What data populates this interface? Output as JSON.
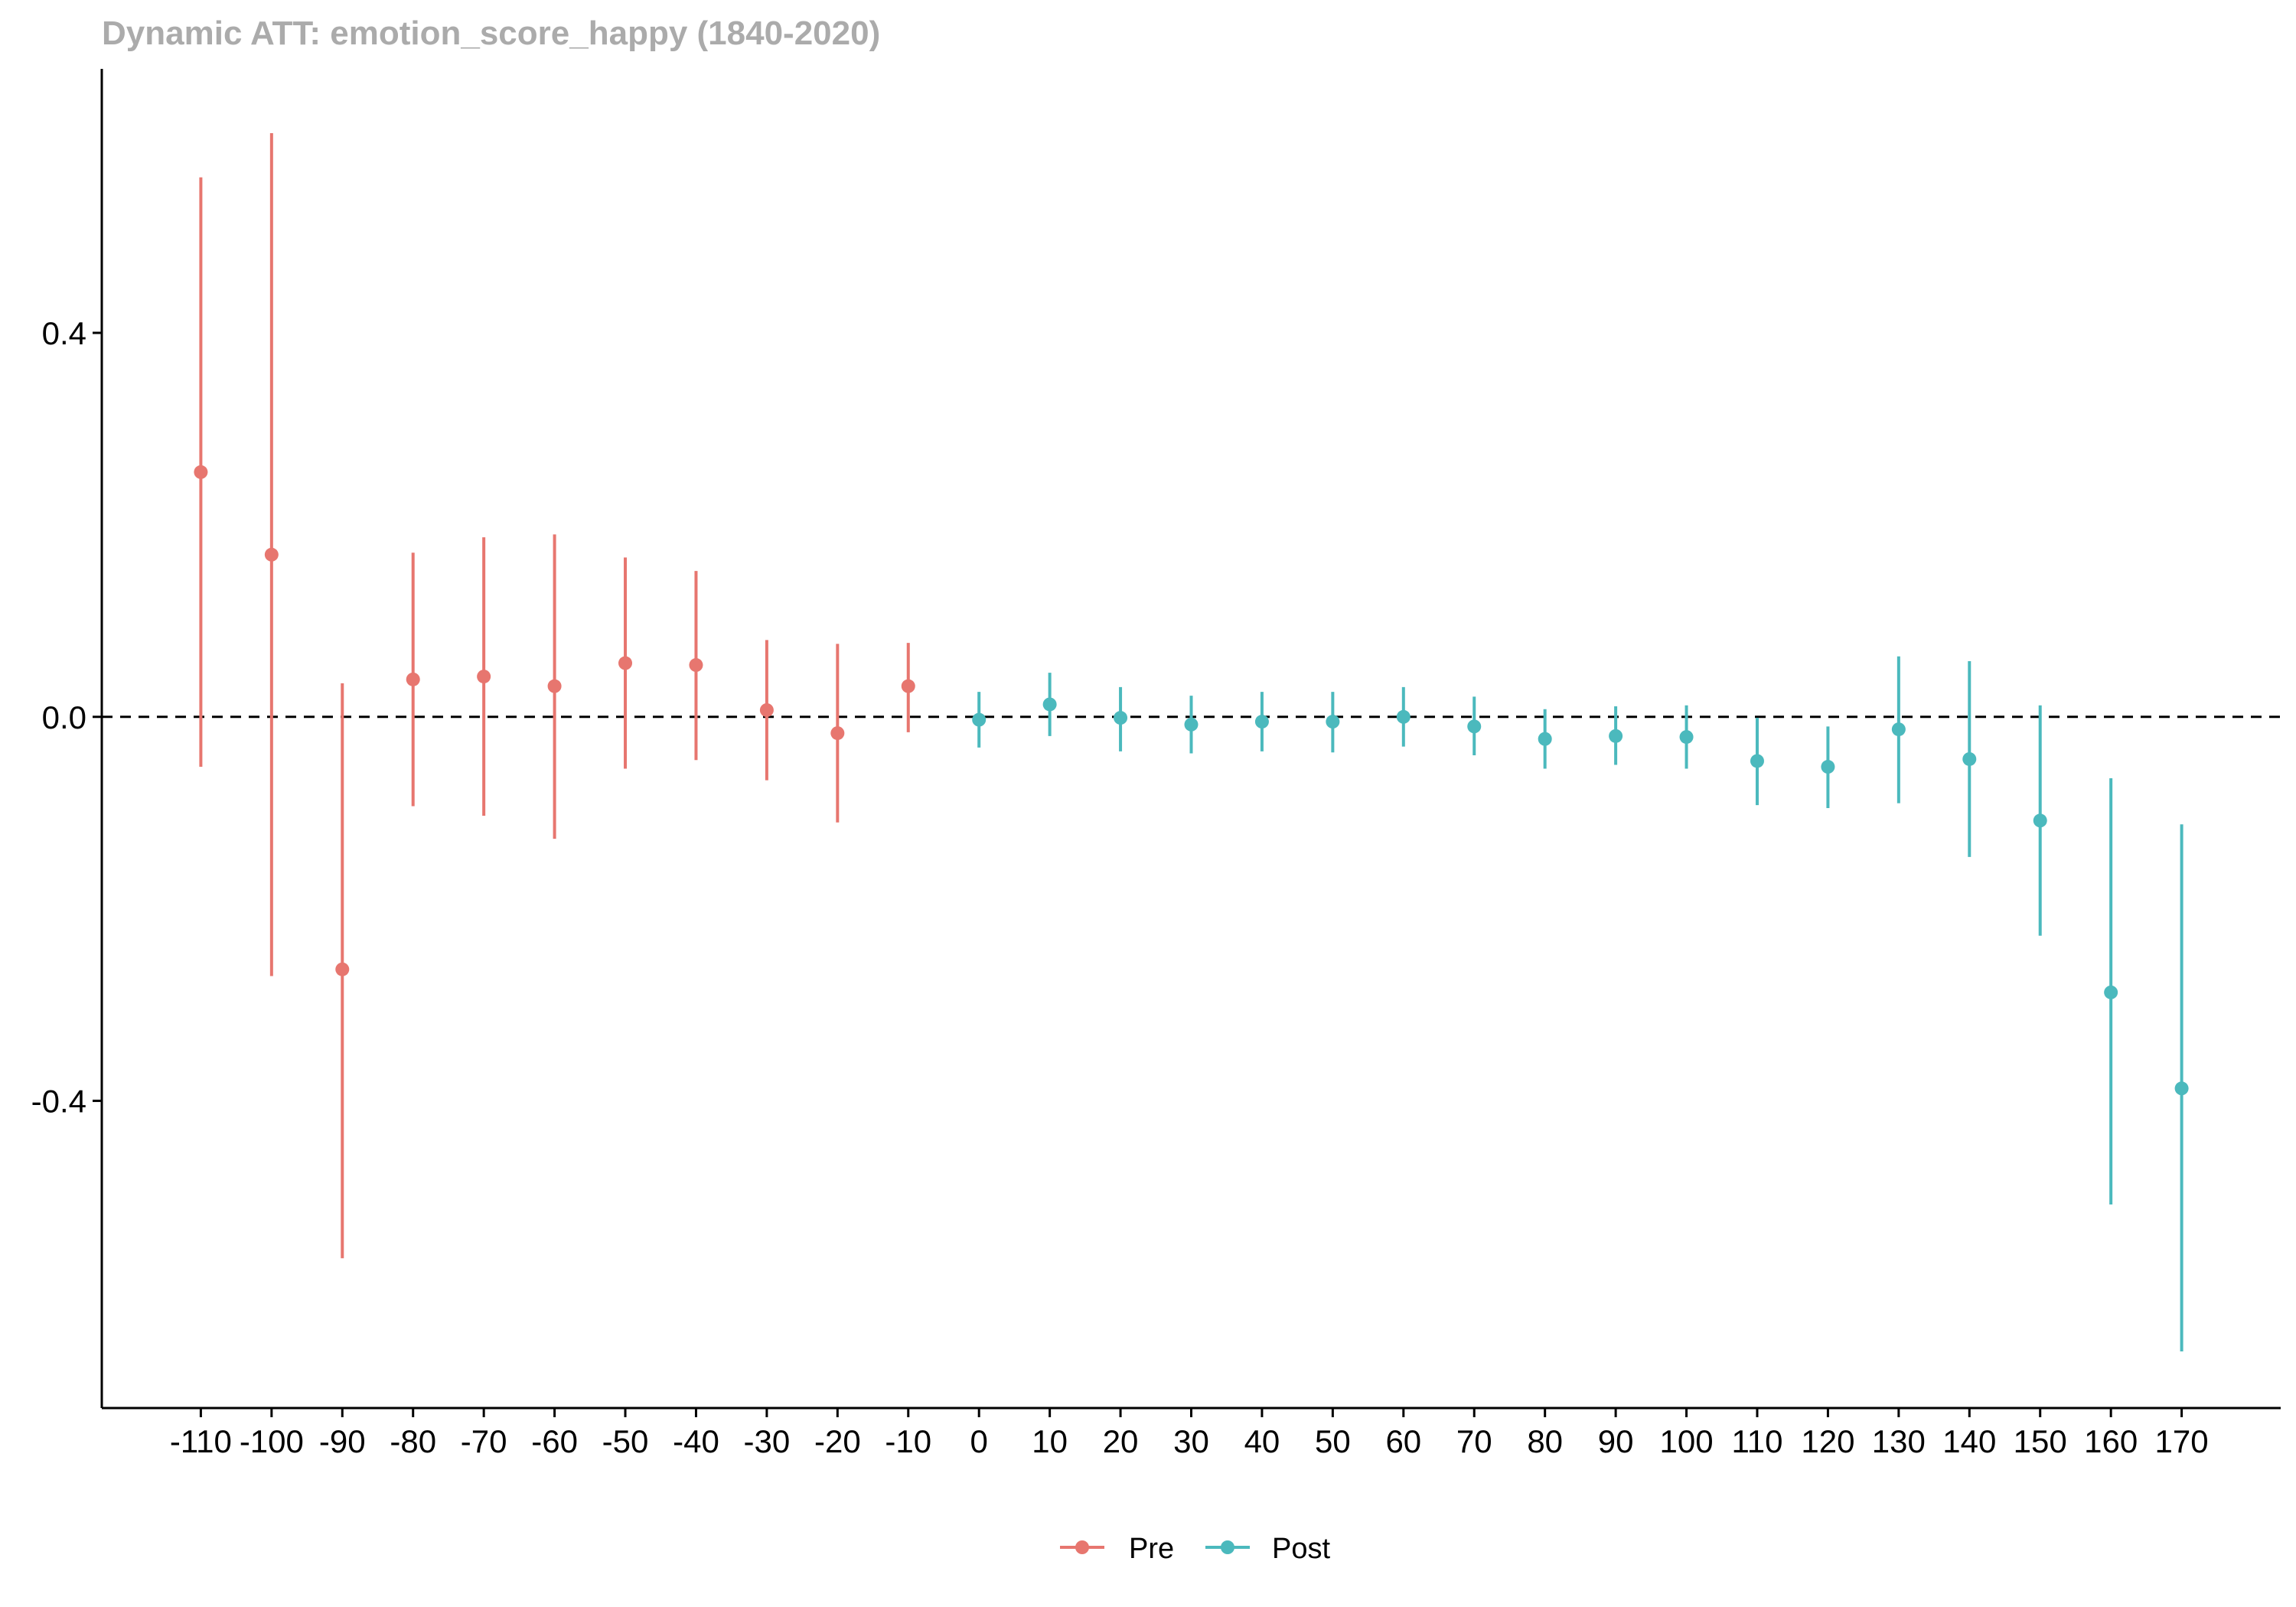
{
  "chart_data": {
    "type": "scatter",
    "title": "Dynamic ATT: emotion_score_happy (1840-2020)",
    "xlabel": "",
    "ylabel": "",
    "x_ticks": [
      -110,
      -100,
      -90,
      -80,
      -70,
      -60,
      -50,
      -40,
      -30,
      -20,
      -10,
      0,
      10,
      20,
      30,
      40,
      50,
      60,
      70,
      80,
      90,
      100,
      110,
      120,
      130,
      140,
      150,
      160,
      170
    ],
    "x_tick_labels": [
      "-110",
      "-100",
      "-90",
      "-80",
      "-70",
      "-60",
      "-50",
      "-40",
      "-30",
      "-20",
      "-10",
      "0",
      "10",
      "20",
      "30",
      "40",
      "50",
      "60",
      "70",
      "80",
      "90",
      "100",
      "110",
      "120",
      "130",
      "140",
      "150",
      "160",
      "170"
    ],
    "y_ticks": [
      -0.4,
      0.0,
      0.4
    ],
    "y_tick_labels": [
      "-0.4",
      "0.0",
      "0.4"
    ],
    "xlim": [
      -124,
      184
    ],
    "ylim": [
      -0.72,
      0.675
    ],
    "reference_line_y": 0,
    "grid": false,
    "legend_position": "bottom",
    "series": [
      {
        "name": "Pre",
        "color": "#E7766F",
        "points": [
          {
            "x": -110,
            "y": 0.255,
            "lo": -0.052,
            "hi": 0.562
          },
          {
            "x": -100,
            "y": 0.169,
            "lo": -0.27,
            "hi": 0.608
          },
          {
            "x": -90,
            "y": -0.263,
            "lo": -0.564,
            "hi": 0.035
          },
          {
            "x": -80,
            "y": 0.039,
            "lo": -0.093,
            "hi": 0.171
          },
          {
            "x": -70,
            "y": 0.042,
            "lo": -0.103,
            "hi": 0.187
          },
          {
            "x": -60,
            "y": 0.032,
            "lo": -0.127,
            "hi": 0.19
          },
          {
            "x": -50,
            "y": 0.056,
            "lo": -0.054,
            "hi": 0.166
          },
          {
            "x": -40,
            "y": 0.054,
            "lo": -0.045,
            "hi": 0.152
          },
          {
            "x": -30,
            "y": 0.007,
            "lo": -0.066,
            "hi": 0.08
          },
          {
            "x": -20,
            "y": -0.017,
            "lo": -0.11,
            "hi": 0.076
          },
          {
            "x": -10,
            "y": 0.032,
            "lo": -0.016,
            "hi": 0.077
          }
        ]
      },
      {
        "name": "Post",
        "color": "#4BB9BD",
        "points": [
          {
            "x": 0,
            "y": -0.003,
            "lo": -0.032,
            "hi": 0.026
          },
          {
            "x": 10,
            "y": 0.013,
            "lo": -0.02,
            "hi": 0.046
          },
          {
            "x": 20,
            "y": -0.001,
            "lo": -0.036,
            "hi": 0.031
          },
          {
            "x": 30,
            "y": -0.008,
            "lo": -0.038,
            "hi": 0.022
          },
          {
            "x": 40,
            "y": -0.005,
            "lo": -0.036,
            "hi": 0.026
          },
          {
            "x": 50,
            "y": -0.005,
            "lo": -0.037,
            "hi": 0.026
          },
          {
            "x": 60,
            "y": 0.0,
            "lo": -0.031,
            "hi": 0.031
          },
          {
            "x": 70,
            "y": -0.01,
            "lo": -0.04,
            "hi": 0.021
          },
          {
            "x": 80,
            "y": -0.023,
            "lo": -0.054,
            "hi": 0.008
          },
          {
            "x": 90,
            "y": -0.02,
            "lo": -0.05,
            "hi": 0.011
          },
          {
            "x": 100,
            "y": -0.021,
            "lo": -0.054,
            "hi": 0.012
          },
          {
            "x": 110,
            "y": -0.046,
            "lo": -0.092,
            "hi": -0.001
          },
          {
            "x": 120,
            "y": -0.052,
            "lo": -0.095,
            "hi": -0.01
          },
          {
            "x": 130,
            "y": -0.013,
            "lo": -0.09,
            "hi": 0.063
          },
          {
            "x": 140,
            "y": -0.044,
            "lo": -0.146,
            "hi": 0.058
          },
          {
            "x": 150,
            "y": -0.108,
            "lo": -0.228,
            "hi": 0.012
          },
          {
            "x": 160,
            "y": -0.287,
            "lo": -0.508,
            "hi": -0.064
          },
          {
            "x": 170,
            "y": -0.387,
            "lo": -0.661,
            "hi": -0.112
          }
        ]
      }
    ]
  }
}
